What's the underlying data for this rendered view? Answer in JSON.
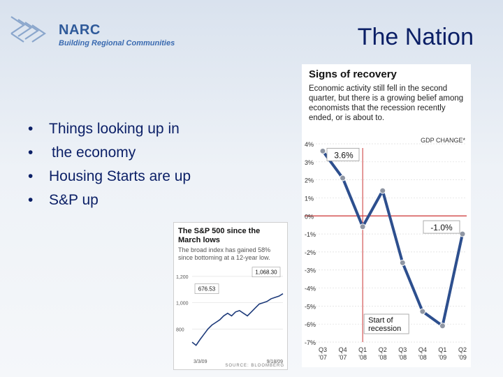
{
  "brand": {
    "name": "NARC",
    "tagline": "Building Regional Communities"
  },
  "slide": {
    "title": "The Nation"
  },
  "bullets": [
    {
      "text": "Things looking up in",
      "cont": "the economy"
    },
    {
      "text": "Housing Starts are up"
    },
    {
      "text": "S&P up"
    }
  ],
  "chart_data": [
    {
      "type": "line",
      "title": "Signs of recovery",
      "subtitle": "Economic activity still fell in the second quarter, but there is a growing belief among economists that the recession recently ended, or is about to.",
      "ylabel": "GDP CHANGE*",
      "categories": [
        "Q3 '07",
        "Q4 '07",
        "Q1 '08",
        "Q2 '08",
        "Q3 '08",
        "Q4 '08",
        "Q1 '09",
        "Q2 '09"
      ],
      "x_ticks": [
        {
          "q": "Q3",
          "y": "'07"
        },
        {
          "q": "Q4",
          "y": "'07"
        },
        {
          "q": "Q1",
          "y": "'08"
        },
        {
          "q": "Q2",
          "y": "'08"
        },
        {
          "q": "Q3",
          "y": "'08"
        },
        {
          "q": "Q4",
          "y": "'08"
        },
        {
          "q": "Q1",
          "y": "'09"
        },
        {
          "q": "Q2",
          "y": "'09"
        }
      ],
      "series": [
        {
          "values": [
            3.6,
            2.1,
            -0.6,
            1.4,
            -2.6,
            -5.3,
            -6.1,
            -1.0
          ]
        }
      ],
      "y_ticks": [
        "4%",
        "3%",
        "2%",
        "1%",
        "0%",
        "-1%",
        "-2%",
        "-3%",
        "-4%",
        "-5%",
        "-6%",
        "-7%"
      ],
      "ylim": [
        -7,
        4
      ],
      "annotations": [
        {
          "text": "3.6%",
          "index": 0,
          "value": 3.6
        },
        {
          "text": "-1.0%",
          "index": 7,
          "value": -1.0
        },
        {
          "text": "Start of recession",
          "index": 2,
          "value": -0.6
        }
      ],
      "colors": {
        "line": "#2d4f8e",
        "marker": "#8f96a3",
        "recession_marker": "#cc3333",
        "zero_line": "#cc3333"
      }
    },
    {
      "type": "line",
      "title": "The S&P 500 since the March lows",
      "subtitle": "The broad index has gained 58% since bottoming at a 12-year low.",
      "y_ticks": [
        "1,200",
        "1,000",
        "800"
      ],
      "ylim": [
        600,
        1300
      ],
      "x_labels": [
        "3/3/09",
        "9/18/09"
      ],
      "start_value": 676.53,
      "end_value": 1068.3,
      "annotations": [
        {
          "text": "676.53",
          "value": 676.53
        },
        {
          "text": "1,068.30",
          "value": 1068.3
        }
      ],
      "series": [
        {
          "values": [
            700,
            676.53,
            720,
            760,
            800,
            830,
            850,
            870,
            900,
            920,
            900,
            930,
            940,
            920,
            900,
            930,
            960,
            990,
            1000,
            1010,
            1030,
            1040,
            1050,
            1068.3
          ]
        }
      ],
      "source": "SOURCE: BLOOMBERG",
      "colors": {
        "line": "#1d3a7a"
      }
    }
  ]
}
